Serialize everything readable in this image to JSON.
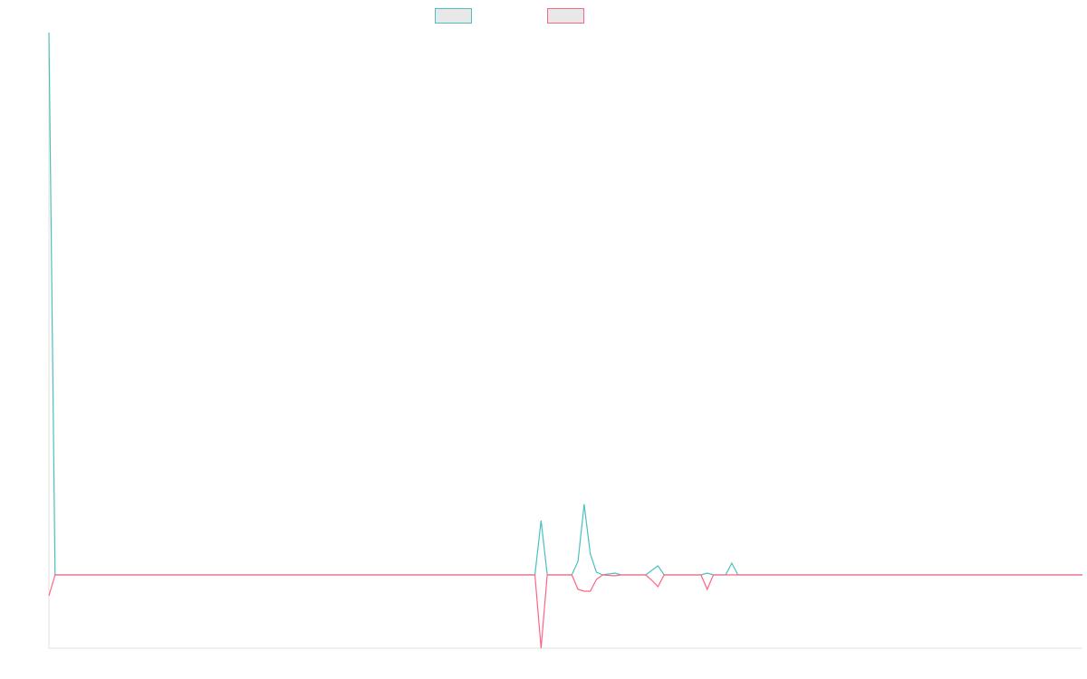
{
  "chart_data": {
    "type": "line",
    "x": [
      0,
      1,
      79,
      80,
      81,
      85,
      86,
      87,
      88,
      89,
      90,
      92,
      93,
      97,
      98,
      99,
      100,
      106,
      107,
      108,
      110,
      111,
      112,
      168
    ],
    "xlim": [
      0,
      168
    ],
    "ylim": [
      -81,
      599
    ],
    "series": [
      {
        "color": "#4bc0c0",
        "values": [
          599,
          0,
          0,
          60,
          0,
          0,
          15,
          78,
          23,
          3,
          0,
          2,
          0,
          0,
          5,
          10,
          0,
          0,
          2,
          0,
          0,
          13,
          0,
          0
        ]
      },
      {
        "color": "#ff6384",
        "values": [
          -23,
          0,
          0,
          -81,
          0,
          0,
          -16,
          -18,
          -18,
          -5,
          0,
          -1,
          0,
          0,
          -6,
          -13,
          0,
          0,
          -16,
          0,
          0,
          0,
          0,
          0
        ]
      }
    ]
  }
}
